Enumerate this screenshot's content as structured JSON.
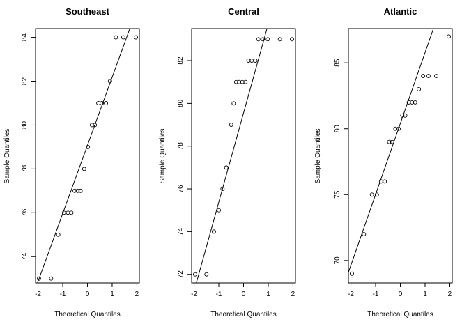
{
  "chart_data": [
    {
      "type": "scatter",
      "title": "Southeast",
      "xlabel": "Theoretical Quantiles",
      "ylabel": "Sample Quantiles",
      "xlim": [
        -2.1,
        2.1
      ],
      "ylim": [
        72.8,
        84.4
      ],
      "xticks": [
        -2,
        -1,
        0,
        1,
        2
      ],
      "yticks": [
        74,
        76,
        78,
        80,
        82,
        84
      ],
      "points": [
        [
          -1.96,
          73
        ],
        [
          -1.47,
          73
        ],
        [
          -1.18,
          75
        ],
        [
          -0.95,
          76
        ],
        [
          -0.79,
          76
        ],
        [
          -0.65,
          76
        ],
        [
          -0.52,
          77
        ],
        [
          -0.4,
          77
        ],
        [
          -0.28,
          77
        ],
        [
          -0.13,
          78
        ],
        [
          0.02,
          79
        ],
        [
          0.18,
          80
        ],
        [
          0.3,
          80
        ],
        [
          0.44,
          81
        ],
        [
          0.58,
          81
        ],
        [
          0.75,
          81
        ],
        [
          0.91,
          82
        ],
        [
          1.15,
          84
        ],
        [
          1.45,
          84
        ],
        [
          1.96,
          84
        ]
      ],
      "line": {
        "x1": -2.1,
        "y1": 72.55,
        "x2": 2.1,
        "y2": 85.6
      }
    },
    {
      "type": "scatter",
      "title": "Central",
      "xlabel": "Theoretical Quantiles",
      "ylabel": "Sample Quantiles",
      "xlim": [
        -2.1,
        2.1
      ],
      "ylim": [
        71.6,
        83.5
      ],
      "xticks": [
        -2,
        -1,
        0,
        1,
        2
      ],
      "yticks": [
        72,
        74,
        76,
        78,
        80,
        82
      ],
      "points": [
        [
          -1.96,
          72
        ],
        [
          -1.5,
          72
        ],
        [
          -1.2,
          74
        ],
        [
          -1.0,
          75
        ],
        [
          -0.85,
          76
        ],
        [
          -0.7,
          77
        ],
        [
          -0.5,
          79
        ],
        [
          -0.4,
          80
        ],
        [
          -0.3,
          81
        ],
        [
          -0.18,
          81
        ],
        [
          -0.05,
          81
        ],
        [
          0.08,
          81
        ],
        [
          0.2,
          82
        ],
        [
          0.33,
          82
        ],
        [
          0.48,
          82
        ],
        [
          0.6,
          83
        ],
        [
          0.78,
          83
        ],
        [
          0.98,
          83
        ],
        [
          1.47,
          83
        ],
        [
          1.96,
          83
        ]
      ],
      "line": {
        "x1": -2.1,
        "y1": 70.8,
        "x2": 2.1,
        "y2": 88.3
      }
    },
    {
      "type": "scatter",
      "title": "Atlantic",
      "xlabel": "Theoretical Quantiles",
      "ylabel": "Sample Quantiles",
      "xlim": [
        -2.1,
        2.1
      ],
      "ylim": [
        68.3,
        87.6
      ],
      "xticks": [
        -2,
        -1,
        0,
        1,
        2
      ],
      "yticks": [
        70,
        75,
        80,
        85
      ],
      "points": [
        [
          -1.96,
          69
        ],
        [
          -1.47,
          72
        ],
        [
          -1.15,
          75
        ],
        [
          -0.95,
          75
        ],
        [
          -0.78,
          76
        ],
        [
          -0.63,
          76
        ],
        [
          -0.45,
          79
        ],
        [
          -0.33,
          79
        ],
        [
          -0.2,
          80
        ],
        [
          -0.07,
          80
        ],
        [
          0.08,
          81
        ],
        [
          0.2,
          81
        ],
        [
          0.34,
          82
        ],
        [
          0.47,
          82
        ],
        [
          0.6,
          82
        ],
        [
          0.75,
          83
        ],
        [
          0.92,
          84
        ],
        [
          1.14,
          84
        ],
        [
          1.45,
          84
        ],
        [
          1.96,
          87
        ]
      ],
      "line": {
        "x1": -2.1,
        "y1": 69.1,
        "x2": 2.1,
        "y2": 91.7
      }
    }
  ]
}
